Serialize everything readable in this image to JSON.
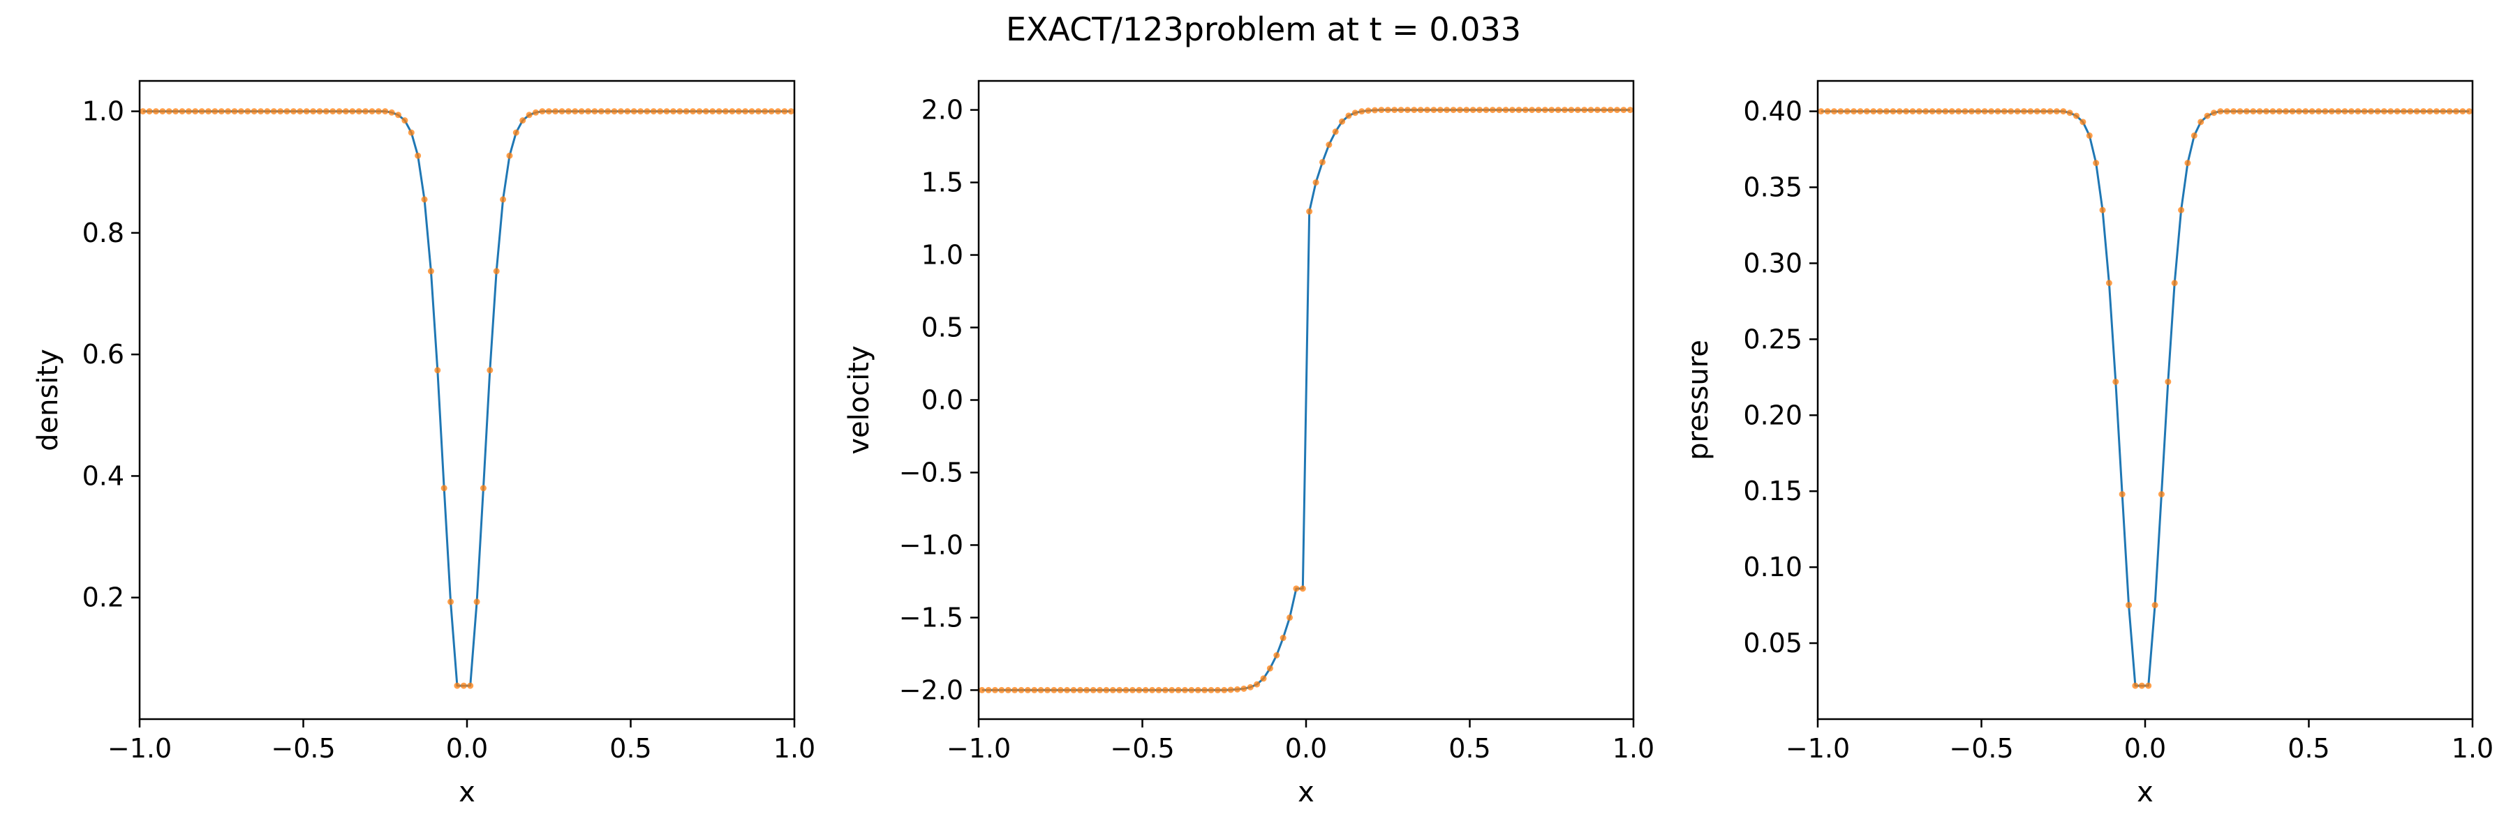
{
  "figure": {
    "suptitle": "EXACT/123problem at t = 0.033"
  },
  "colors": {
    "line": "#1f77b4",
    "marker": "#ff7f0e",
    "frame": "#000000"
  },
  "chart_data": [
    {
      "type": "line",
      "xlabel": "x",
      "ylabel": "density",
      "xlim": [
        -1.0,
        1.0
      ],
      "ylim": [
        0.0,
        1.05
      ],
      "xticks": [
        -1.0,
        -0.5,
        0.0,
        0.5,
        1.0
      ],
      "xtick_labels": [
        "−1.0",
        "−0.5",
        "0.0",
        "0.5",
        "1.0"
      ],
      "yticks": [
        0.2,
        0.4,
        0.6,
        0.8,
        1.0
      ],
      "ytick_labels": [
        "0.2",
        "0.4",
        "0.6",
        "0.8",
        "1.0"
      ],
      "grid": false,
      "series": [
        {
          "style": "line",
          "x": [
            -0.99,
            -0.25,
            -0.23,
            -0.21,
            -0.19,
            -0.17,
            -0.15,
            -0.13,
            -0.11,
            -0.09,
            -0.07,
            -0.05,
            -0.03,
            -0.01,
            0.01,
            0.03,
            0.05,
            0.07,
            0.09,
            0.11,
            0.13,
            0.15,
            0.17,
            0.19,
            0.21,
            0.23,
            0.25,
            0.99
          ],
          "y": [
            1.0,
            1.0,
            0.998,
            0.994,
            0.985,
            0.965,
            0.927,
            0.855,
            0.737,
            0.574,
            0.38,
            0.193,
            0.055,
            0.055,
            0.055,
            0.193,
            0.38,
            0.574,
            0.737,
            0.855,
            0.927,
            0.965,
            0.985,
            0.994,
            0.998,
            1.0,
            1.0,
            1.0
          ]
        },
        {
          "style": "markers",
          "x": [
            -0.99,
            -0.97,
            -0.95,
            -0.93,
            -0.91,
            -0.89,
            -0.87,
            -0.85,
            -0.83,
            -0.81,
            -0.79,
            -0.77,
            -0.75,
            -0.73,
            -0.71,
            -0.69,
            -0.67,
            -0.65,
            -0.63,
            -0.61,
            -0.59,
            -0.57,
            -0.55,
            -0.53,
            -0.51,
            -0.49,
            -0.47,
            -0.45,
            -0.43,
            -0.41,
            -0.39,
            -0.37,
            -0.35,
            -0.33,
            -0.31,
            -0.29,
            -0.27,
            -0.25,
            -0.23,
            -0.21,
            -0.19,
            -0.17,
            -0.15,
            -0.13,
            -0.11,
            -0.09,
            -0.07,
            -0.05,
            -0.03,
            -0.01,
            0.01,
            0.03,
            0.05,
            0.07,
            0.09,
            0.11,
            0.13,
            0.15,
            0.17,
            0.19,
            0.21,
            0.23,
            0.25,
            0.27,
            0.29,
            0.31,
            0.33,
            0.35,
            0.37,
            0.39,
            0.41,
            0.43,
            0.45,
            0.47,
            0.49,
            0.51,
            0.53,
            0.55,
            0.57,
            0.59,
            0.61,
            0.63,
            0.65,
            0.67,
            0.69,
            0.71,
            0.73,
            0.75,
            0.77,
            0.79,
            0.81,
            0.83,
            0.85,
            0.87,
            0.89,
            0.91,
            0.93,
            0.95,
            0.97,
            0.99
          ],
          "y": [
            1.0,
            1.0,
            1.0,
            1.0,
            1.0,
            1.0,
            1.0,
            1.0,
            1.0,
            1.0,
            1.0,
            1.0,
            1.0,
            1.0,
            1.0,
            1.0,
            1.0,
            1.0,
            1.0,
            1.0,
            1.0,
            1.0,
            1.0,
            1.0,
            1.0,
            1.0,
            1.0,
            1.0,
            1.0,
            1.0,
            1.0,
            1.0,
            1.0,
            1.0,
            1.0,
            1.0,
            1.0,
            1.0,
            0.998,
            0.994,
            0.985,
            0.965,
            0.927,
            0.855,
            0.737,
            0.574,
            0.38,
            0.193,
            0.055,
            0.055,
            0.055,
            0.193,
            0.38,
            0.574,
            0.737,
            0.855,
            0.927,
            0.965,
            0.985,
            0.994,
            0.998,
            1.0,
            1.0,
            1.0,
            1.0,
            1.0,
            1.0,
            1.0,
            1.0,
            1.0,
            1.0,
            1.0,
            1.0,
            1.0,
            1.0,
            1.0,
            1.0,
            1.0,
            1.0,
            1.0,
            1.0,
            1.0,
            1.0,
            1.0,
            1.0,
            1.0,
            1.0,
            1.0,
            1.0,
            1.0,
            1.0,
            1.0,
            1.0,
            1.0,
            1.0,
            1.0,
            1.0,
            1.0,
            1.0,
            1.0
          ]
        }
      ]
    },
    {
      "type": "line",
      "xlabel": "x",
      "ylabel": "velocity",
      "xlim": [
        -1.0,
        1.0
      ],
      "ylim": [
        -2.2,
        2.2
      ],
      "xticks": [
        -1.0,
        -0.5,
        0.0,
        0.5,
        1.0
      ],
      "xtick_labels": [
        "−1.0",
        "−0.5",
        "0.0",
        "0.5",
        "1.0"
      ],
      "yticks": [
        -2.0,
        -1.5,
        -1.0,
        -0.5,
        0.0,
        0.5,
        1.0,
        1.5,
        2.0
      ],
      "ytick_labels": [
        "−2.0",
        "−1.5",
        "−1.0",
        "−0.5",
        "0.0",
        "0.5",
        "1.0",
        "1.5",
        "2.0"
      ],
      "grid": false,
      "series": [
        {
          "style": "line",
          "x": [
            -0.99,
            -0.25,
            -0.23,
            -0.21,
            -0.19,
            -0.17,
            -0.15,
            -0.13,
            -0.11,
            -0.09,
            -0.07,
            -0.05,
            -0.03,
            -0.01,
            0.01,
            0.03,
            0.05,
            0.07,
            0.09,
            0.11,
            0.13,
            0.15,
            0.17,
            0.19,
            0.21,
            0.23,
            0.25,
            0.99
          ],
          "y": [
            -2.0,
            -2.0,
            -1.998,
            -1.995,
            -1.99,
            -1.98,
            -1.96,
            -1.92,
            -1.85,
            -1.76,
            -1.64,
            -1.5,
            -1.3,
            -1.3,
            1.3,
            1.5,
            1.64,
            1.76,
            1.85,
            1.92,
            1.96,
            1.98,
            1.99,
            1.995,
            1.998,
            2.0,
            2.0,
            2.0
          ]
        },
        {
          "style": "markers",
          "x": [
            -0.99,
            -0.97,
            -0.95,
            -0.93,
            -0.91,
            -0.89,
            -0.87,
            -0.85,
            -0.83,
            -0.81,
            -0.79,
            -0.77,
            -0.75,
            -0.73,
            -0.71,
            -0.69,
            -0.67,
            -0.65,
            -0.63,
            -0.61,
            -0.59,
            -0.57,
            -0.55,
            -0.53,
            -0.51,
            -0.49,
            -0.47,
            -0.45,
            -0.43,
            -0.41,
            -0.39,
            -0.37,
            -0.35,
            -0.33,
            -0.31,
            -0.29,
            -0.27,
            -0.25,
            -0.23,
            -0.21,
            -0.19,
            -0.17,
            -0.15,
            -0.13,
            -0.11,
            -0.09,
            -0.07,
            -0.05,
            -0.03,
            -0.01,
            0.01,
            0.03,
            0.05,
            0.07,
            0.09,
            0.11,
            0.13,
            0.15,
            0.17,
            0.19,
            0.21,
            0.23,
            0.25,
            0.27,
            0.29,
            0.31,
            0.33,
            0.35,
            0.37,
            0.39,
            0.41,
            0.43,
            0.45,
            0.47,
            0.49,
            0.51,
            0.53,
            0.55,
            0.57,
            0.59,
            0.61,
            0.63,
            0.65,
            0.67,
            0.69,
            0.71,
            0.73,
            0.75,
            0.77,
            0.79,
            0.81,
            0.83,
            0.85,
            0.87,
            0.89,
            0.91,
            0.93,
            0.95,
            0.97,
            0.99
          ],
          "y": [
            -2.0,
            -2.0,
            -2.0,
            -2.0,
            -2.0,
            -2.0,
            -2.0,
            -2.0,
            -2.0,
            -2.0,
            -2.0,
            -2.0,
            -2.0,
            -2.0,
            -2.0,
            -2.0,
            -2.0,
            -2.0,
            -2.0,
            -2.0,
            -2.0,
            -2.0,
            -2.0,
            -2.0,
            -2.0,
            -2.0,
            -2.0,
            -2.0,
            -2.0,
            -2.0,
            -2.0,
            -2.0,
            -2.0,
            -2.0,
            -2.0,
            -2.0,
            -2.0,
            -2.0,
            -1.998,
            -1.995,
            -1.99,
            -1.98,
            -1.96,
            -1.92,
            -1.85,
            -1.76,
            -1.64,
            -1.5,
            -1.3,
            -1.3,
            1.3,
            1.5,
            1.64,
            1.76,
            1.85,
            1.92,
            1.96,
            1.98,
            1.99,
            1.995,
            1.998,
            2.0,
            2.0,
            2.0,
            2.0,
            2.0,
            2.0,
            2.0,
            2.0,
            2.0,
            2.0,
            2.0,
            2.0,
            2.0,
            2.0,
            2.0,
            2.0,
            2.0,
            2.0,
            2.0,
            2.0,
            2.0,
            2.0,
            2.0,
            2.0,
            2.0,
            2.0,
            2.0,
            2.0,
            2.0,
            2.0,
            2.0,
            2.0,
            2.0,
            2.0,
            2.0,
            2.0,
            2.0,
            2.0,
            2.0
          ]
        }
      ]
    },
    {
      "type": "line",
      "xlabel": "x",
      "ylabel": "pressure",
      "xlim": [
        -1.0,
        1.0
      ],
      "ylim": [
        0.0,
        0.42
      ],
      "xticks": [
        -1.0,
        -0.5,
        0.0,
        0.5,
        1.0
      ],
      "xtick_labels": [
        "−1.0",
        "−0.5",
        "0.0",
        "0.5",
        "1.0"
      ],
      "yticks": [
        0.05,
        0.1,
        0.15,
        0.2,
        0.25,
        0.3,
        0.35,
        0.4
      ],
      "ytick_labels": [
        "0.05",
        "0.10",
        "0.15",
        "0.20",
        "0.25",
        "0.30",
        "0.35",
        "0.40"
      ],
      "grid": false,
      "series": [
        {
          "style": "line",
          "x": [
            -0.99,
            -0.25,
            -0.23,
            -0.21,
            -0.19,
            -0.17,
            -0.15,
            -0.13,
            -0.11,
            -0.09,
            -0.07,
            -0.05,
            -0.03,
            -0.01,
            0.01,
            0.03,
            0.05,
            0.07,
            0.09,
            0.11,
            0.13,
            0.15,
            0.17,
            0.19,
            0.21,
            0.23,
            0.25,
            0.99
          ],
          "y": [
            0.4,
            0.4,
            0.399,
            0.397,
            0.393,
            0.384,
            0.366,
            0.335,
            0.287,
            0.222,
            0.148,
            0.075,
            0.022,
            0.022,
            0.022,
            0.075,
            0.148,
            0.222,
            0.287,
            0.335,
            0.366,
            0.384,
            0.393,
            0.397,
            0.399,
            0.4,
            0.4,
            0.4
          ]
        },
        {
          "style": "markers",
          "x": [
            -0.99,
            -0.97,
            -0.95,
            -0.93,
            -0.91,
            -0.89,
            -0.87,
            -0.85,
            -0.83,
            -0.81,
            -0.79,
            -0.77,
            -0.75,
            -0.73,
            -0.71,
            -0.69,
            -0.67,
            -0.65,
            -0.63,
            -0.61,
            -0.59,
            -0.57,
            -0.55,
            -0.53,
            -0.51,
            -0.49,
            -0.47,
            -0.45,
            -0.43,
            -0.41,
            -0.39,
            -0.37,
            -0.35,
            -0.33,
            -0.31,
            -0.29,
            -0.27,
            -0.25,
            -0.23,
            -0.21,
            -0.19,
            -0.17,
            -0.15,
            -0.13,
            -0.11,
            -0.09,
            -0.07,
            -0.05,
            -0.03,
            -0.01,
            0.01,
            0.03,
            0.05,
            0.07,
            0.09,
            0.11,
            0.13,
            0.15,
            0.17,
            0.19,
            0.21,
            0.23,
            0.25,
            0.27,
            0.29,
            0.31,
            0.33,
            0.35,
            0.37,
            0.39,
            0.41,
            0.43,
            0.45,
            0.47,
            0.49,
            0.51,
            0.53,
            0.55,
            0.57,
            0.59,
            0.61,
            0.63,
            0.65,
            0.67,
            0.69,
            0.71,
            0.73,
            0.75,
            0.77,
            0.79,
            0.81,
            0.83,
            0.85,
            0.87,
            0.89,
            0.91,
            0.93,
            0.95,
            0.97,
            0.99
          ],
          "y": [
            0.4,
            0.4,
            0.4,
            0.4,
            0.4,
            0.4,
            0.4,
            0.4,
            0.4,
            0.4,
            0.4,
            0.4,
            0.4,
            0.4,
            0.4,
            0.4,
            0.4,
            0.4,
            0.4,
            0.4,
            0.4,
            0.4,
            0.4,
            0.4,
            0.4,
            0.4,
            0.4,
            0.4,
            0.4,
            0.4,
            0.4,
            0.4,
            0.4,
            0.4,
            0.4,
            0.4,
            0.4,
            0.4,
            0.399,
            0.397,
            0.393,
            0.384,
            0.366,
            0.335,
            0.287,
            0.222,
            0.148,
            0.075,
            0.022,
            0.022,
            0.022,
            0.075,
            0.148,
            0.222,
            0.287,
            0.335,
            0.366,
            0.384,
            0.393,
            0.397,
            0.399,
            0.4,
            0.4,
            0.4,
            0.4,
            0.4,
            0.4,
            0.4,
            0.4,
            0.4,
            0.4,
            0.4,
            0.4,
            0.4,
            0.4,
            0.4,
            0.4,
            0.4,
            0.4,
            0.4,
            0.4,
            0.4,
            0.4,
            0.4,
            0.4,
            0.4,
            0.4,
            0.4,
            0.4,
            0.4,
            0.4,
            0.4,
            0.4,
            0.4,
            0.4,
            0.4,
            0.4,
            0.4,
            0.4,
            0.4
          ]
        }
      ]
    }
  ]
}
